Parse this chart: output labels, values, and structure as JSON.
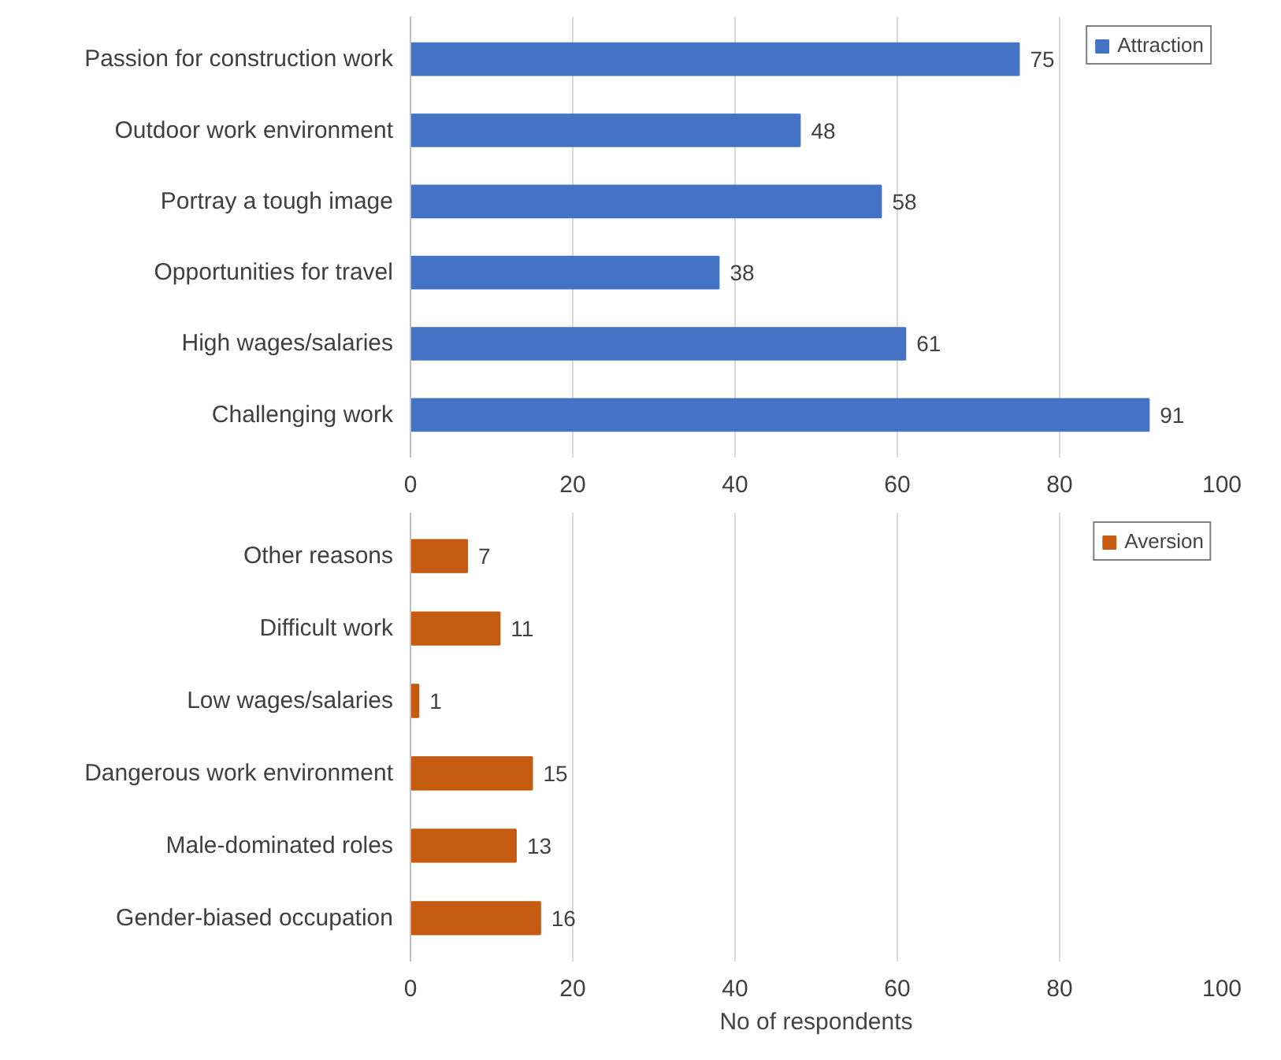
{
  "chart_data": [
    {
      "type": "bar",
      "orientation": "horizontal",
      "categories": [
        "Passion for construction work",
        "Outdoor work environment",
        "Portray a tough image",
        "Opportunities for travel",
        "High wages/salaries",
        "Challenging work"
      ],
      "series": [
        {
          "name": "Attraction",
          "color": "#4472c4",
          "values": [
            75,
            48,
            58,
            38,
            61,
            91
          ]
        }
      ],
      "xlim": [
        0,
        100
      ],
      "xticks": [
        0,
        20,
        40,
        60,
        80,
        100
      ],
      "grid": "x",
      "legend": "top right",
      "data_labels": true
    },
    {
      "type": "bar",
      "orientation": "horizontal",
      "categories": [
        "Other reasons",
        "Difficult work",
        "Low wages/salaries",
        "Dangerous work environment",
        "Male-dominated roles",
        "Gender-biased occupation"
      ],
      "series": [
        {
          "name": "Aversion",
          "color": "#c55a11",
          "values": [
            7,
            11,
            1,
            15,
            13,
            16
          ]
        }
      ],
      "xlim": [
        0,
        100
      ],
      "xticks": [
        0,
        20,
        40,
        60,
        80,
        100
      ],
      "xlabel": "No of respondents",
      "grid": "x",
      "legend": "top right",
      "data_labels": true
    }
  ]
}
